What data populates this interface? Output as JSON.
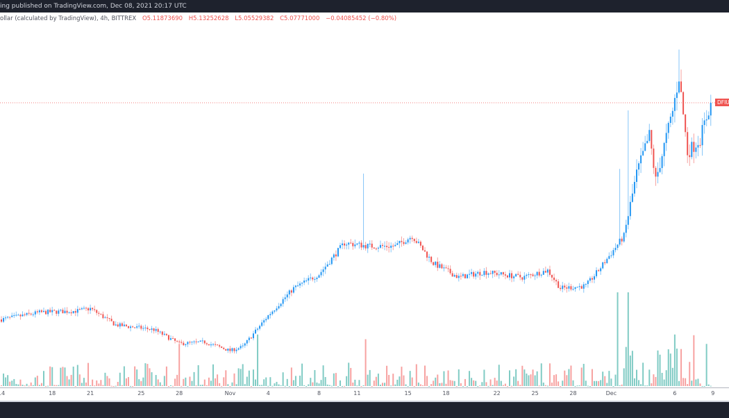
{
  "header": {
    "published": "ing published on TradingView.com, Dec 08, 2021 20:17 UTC"
  },
  "legend": {
    "symbol": "ollar (calculated by TradingView), 4h, BITTREX",
    "open_label": "O",
    "open": "5.11873690",
    "high_label": "H",
    "high": "5.13252628",
    "low_label": "L",
    "low": "5.05529382",
    "close_label": "C",
    "close": "5.07771000",
    "change": "−0.04085452 (−0.80%)"
  },
  "price_label": "DFIUSD",
  "colors": {
    "up": "#2196f3",
    "down": "#ef5350",
    "vol_up": "#80cbc4",
    "vol_down": "#f7a1a0",
    "bar_bg": "#1e222d"
  },
  "chart_data": {
    "type": "candlestick",
    "interval": "4h",
    "last_close": 5.07771,
    "grid": false,
    "x_ticks": [
      {
        "label": "14",
        "date": "2021-10-14"
      },
      {
        "label": "18",
        "date": "2021-10-18"
      },
      {
        "label": "21",
        "date": "2021-10-21"
      },
      {
        "label": "25",
        "date": "2021-10-25"
      },
      {
        "label": "28",
        "date": "2021-10-28"
      },
      {
        "label": "Nov",
        "date": "2021-11-01"
      },
      {
        "label": "4",
        "date": "2021-11-04"
      },
      {
        "label": "8",
        "date": "2021-11-08"
      },
      {
        "label": "11",
        "date": "2021-11-11"
      },
      {
        "label": "15",
        "date": "2021-11-15"
      },
      {
        "label": "18",
        "date": "2021-11-18"
      },
      {
        "label": "22",
        "date": "2021-11-22"
      },
      {
        "label": "25",
        "date": "2021-11-25"
      },
      {
        "label": "28",
        "date": "2021-11-28"
      },
      {
        "label": "Dec",
        "date": "2021-12-01"
      },
      {
        "label": "6",
        "date": "2021-12-06"
      },
      {
        "label": "9",
        "date": "2021-12-09"
      }
    ],
    "close_path": [
      [
        "2021-10-14T00",
        2.3
      ],
      [
        "2021-10-17T00",
        2.39
      ],
      [
        "2021-10-20T00",
        2.41
      ],
      [
        "2021-10-21T00",
        2.44
      ],
      [
        "2021-10-23T00",
        2.23
      ],
      [
        "2021-10-26T00",
        2.17
      ],
      [
        "2021-10-28T00",
        1.99
      ],
      [
        "2021-10-30T00",
        2.01
      ],
      [
        "2021-11-01T00",
        1.9
      ],
      [
        "2021-11-02T00",
        1.95
      ],
      [
        "2021-11-04T00",
        2.35
      ],
      [
        "2021-11-06T00",
        2.7
      ],
      [
        "2021-11-08T00",
        2.88
      ],
      [
        "2021-11-10T00",
        3.28
      ],
      [
        "2021-11-12T00",
        3.24
      ],
      [
        "2021-11-14T00",
        3.24
      ],
      [
        "2021-11-15T08",
        3.37
      ],
      [
        "2021-11-17T00",
        3.02
      ],
      [
        "2021-11-19T00",
        2.84
      ],
      [
        "2021-11-21T00",
        2.91
      ],
      [
        "2021-11-24T00",
        2.84
      ],
      [
        "2021-11-26T00",
        2.93
      ],
      [
        "2021-11-27T00",
        2.7
      ],
      [
        "2021-11-29T00",
        2.73
      ],
      [
        "2021-11-30T00",
        2.93
      ],
      [
        "2021-12-01T00",
        3.15
      ],
      [
        "2021-12-02T00",
        3.37
      ],
      [
        "2021-12-03T00",
        4.17
      ],
      [
        "2021-12-04T00",
        4.66
      ],
      [
        "2021-12-04T12",
        4.08
      ],
      [
        "2021-12-05T20",
        4.97
      ],
      [
        "2021-12-06T08",
        5.42
      ],
      [
        "2021-12-07T00",
        4.44
      ],
      [
        "2021-12-08T00",
        4.62
      ],
      [
        "2021-12-08T20",
        5.08
      ]
    ],
    "wick_spikes": [
      [
        "2021-11-11T12",
        4.17
      ],
      [
        "2021-12-01T16",
        4.23
      ],
      [
        "2021-12-02T08",
        4.98
      ],
      [
        "2021-12-06T08",
        5.76
      ]
    ],
    "volume_spikes": [
      [
        "2021-12-01T12",
        1.0
      ],
      [
        "2021-12-02T08",
        1.0
      ],
      [
        "2021-11-11T16",
        0.5
      ],
      [
        "2021-11-03T04",
        0.55
      ],
      [
        "2021-12-06T00",
        0.55
      ],
      [
        "2021-10-28T00",
        0.45
      ]
    ]
  }
}
